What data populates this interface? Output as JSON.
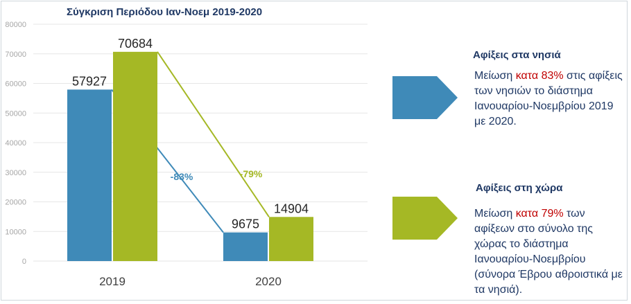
{
  "chart_data": {
    "type": "bar",
    "title": "Σύγκριση Περιόδου Ιαν-Νοεμ 2019-2020",
    "categories": [
      "2019",
      "2020"
    ],
    "series": [
      {
        "name": "Αφίξεις στα νησιά",
        "color": "#3f8ab8",
        "values": [
          57927,
          9675
        ],
        "change_label": "-83%"
      },
      {
        "name": "Αφίξεις στη χώρα",
        "color": "#a5b825",
        "values": [
          70684,
          14904
        ],
        "change_label": "-79%"
      }
    ],
    "ylim": [
      0,
      80000
    ],
    "yticks": [
      0,
      10000,
      20000,
      30000,
      40000,
      50000,
      60000,
      70000,
      80000
    ],
    "grid": true,
    "xlabel": "",
    "ylabel": ""
  },
  "legend": {
    "islands": {
      "title": "Αφίξεις στα νησιά",
      "color": "#3f8ab8",
      "text_before": "Μείωση ",
      "highlight": "κατα 83%",
      "text_after": " στις αφίξεις των νησιών το διάστημα Ιανουαρίου-Νοεμβρίου 2019 με 2020."
    },
    "country": {
      "title": "Αφίξεις στη χώρα",
      "color": "#a5b825",
      "text_before": "Μείωση ",
      "highlight": "κατα 79%",
      "text_after": " των αφίξεων στο σύνολο της χώρας το διάστημα Ιανουαρίου-Νοεμβρίου (σύνορα Έβρου αθροιστικά με τα νησιά)."
    }
  }
}
